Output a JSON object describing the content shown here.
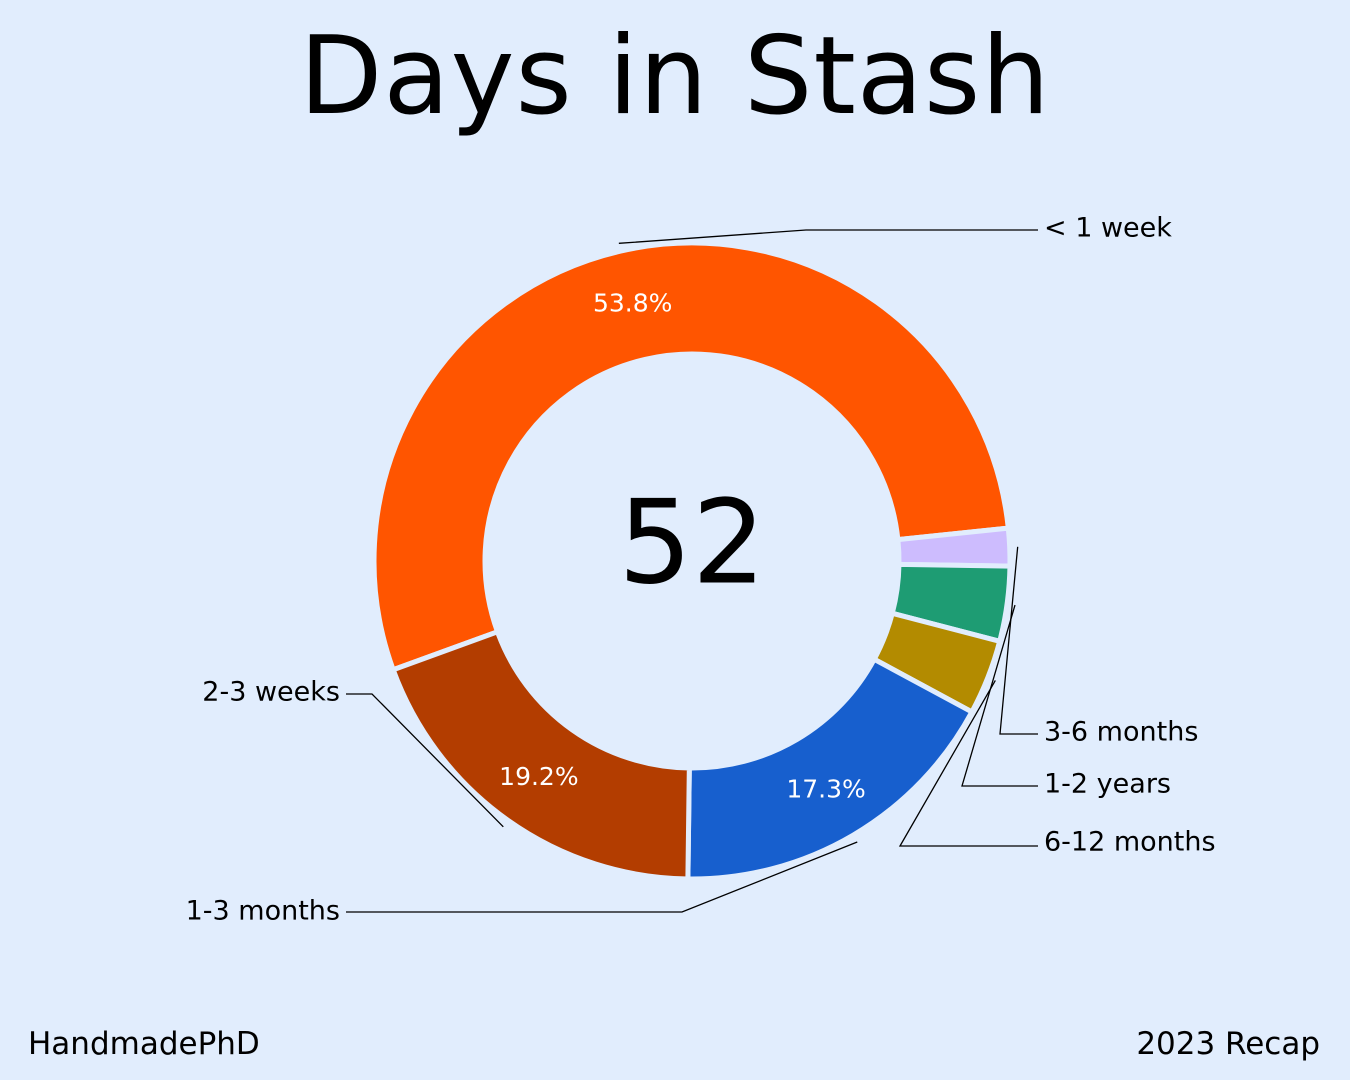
{
  "title": "Days in Stash",
  "center_value": "52",
  "footer": {
    "left": "HandmadePhD",
    "right": "2023 Recap"
  },
  "chart_data": {
    "type": "pie",
    "donut": true,
    "categories": [
      "< 1 week",
      "3-6 months",
      "1-2 years",
      "6-12 months",
      "1-3 months",
      "2-3 weeks"
    ],
    "values": [
      53.8,
      1.9,
      3.8,
      3.8,
      17.3,
      19.2
    ],
    "percent_labels": [
      "53.8%",
      "",
      "",
      "",
      "17.3%",
      "19.2%"
    ],
    "colors": [
      "#ff5500",
      "#cdbcfe",
      "#1e9c73",
      "#b38b00",
      "#175fce",
      "#b33d00"
    ],
    "center_label": "52",
    "label_placement": "outside with leader lines"
  }
}
